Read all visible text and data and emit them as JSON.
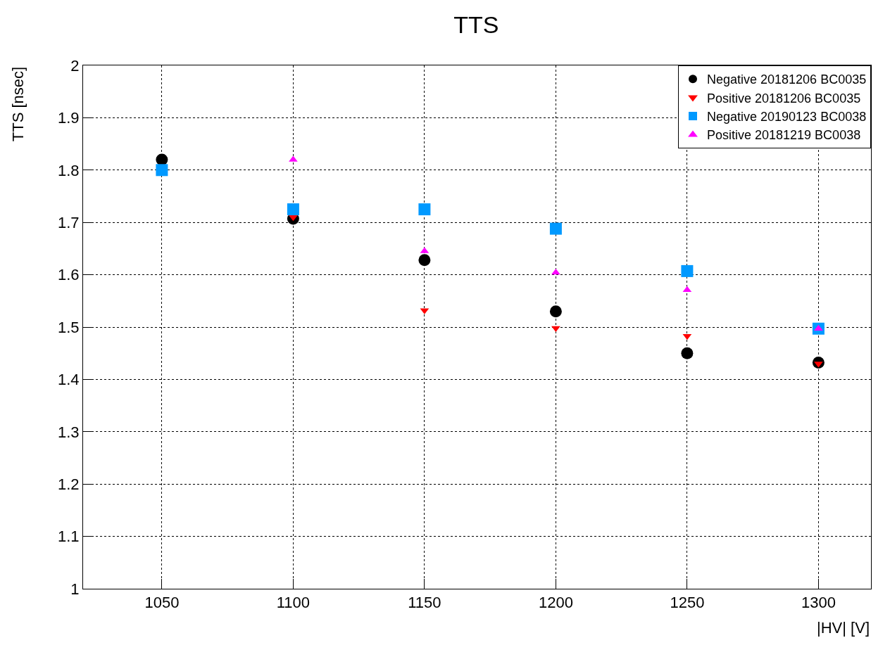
{
  "chart_data": {
    "type": "scatter",
    "title": "TTS",
    "xlabel": "|HV| [V]",
    "ylabel": "TTS [nsec]",
    "x": [
      1050,
      1100,
      1150,
      1200,
      1250,
      1300
    ],
    "series": [
      {
        "name": "Negative 20181206 BC0035",
        "color": "#000000",
        "marker": "circle",
        "values": [
          1.82,
          1.707,
          1.628,
          1.53,
          1.45,
          1.432
        ]
      },
      {
        "name": "Positive 20181206 BC0035",
        "color": "#ff0000",
        "marker": "triangle-down",
        "values": [
          null,
          1.71,
          1.532,
          1.498,
          1.483,
          1.43
        ]
      },
      {
        "name": "Negative 20190123 BC0038",
        "color": "#0099ff",
        "marker": "square",
        "values": [
          1.8,
          1.725,
          1.725,
          1.688,
          1.607,
          1.497
        ]
      },
      {
        "name": "Positive 20181219 BC0038",
        "color": "#ff00ff",
        "marker": "triangle",
        "values": [
          null,
          1.82,
          1.645,
          1.604,
          1.571,
          1.497
        ]
      }
    ],
    "xlim": [
      1020,
      1320
    ],
    "xticks": [
      1050,
      1100,
      1150,
      1200,
      1250,
      1300
    ],
    "ylim": [
      1,
      2
    ],
    "yticks": [
      1,
      1.1,
      1.2,
      1.3,
      1.4,
      1.5,
      1.6,
      1.7,
      1.8,
      1.9,
      2
    ],
    "grid": true,
    "legend": "top right"
  }
}
